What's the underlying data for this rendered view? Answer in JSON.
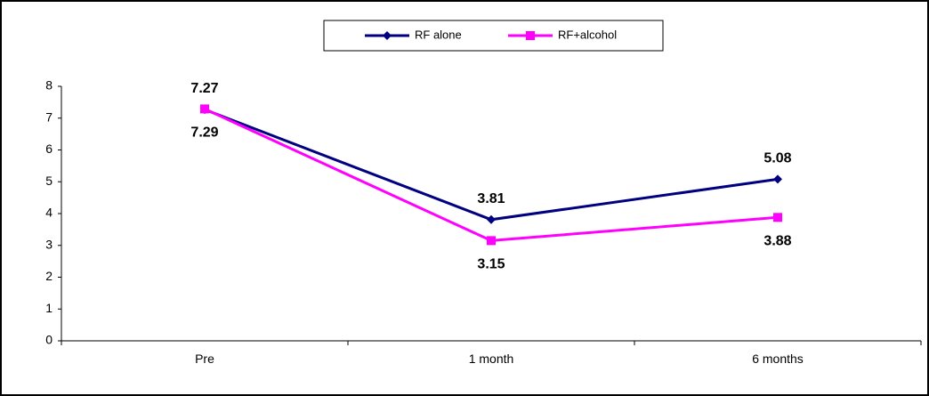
{
  "chart_data": {
    "type": "line",
    "categories": [
      "Pre",
      "1 month",
      "6 months"
    ],
    "series": [
      {
        "name": "RF alone",
        "values": [
          7.27,
          3.81,
          5.08
        ],
        "color": "#000080",
        "marker": "diamond",
        "label_position": [
          "above",
          "above",
          "above"
        ]
      },
      {
        "name": "RF+alcohol",
        "values": [
          7.29,
          3.15,
          3.88
        ],
        "color": "#FF00FF",
        "marker": "square",
        "label_position": [
          "below",
          "below",
          "below"
        ]
      }
    ],
    "y_ticks": [
      "0",
      "1",
      "2",
      "3",
      "4",
      "5",
      "6",
      "7",
      "8"
    ],
    "ylim": [
      0,
      8
    ],
    "grid": false,
    "legend_position": "top-center"
  }
}
